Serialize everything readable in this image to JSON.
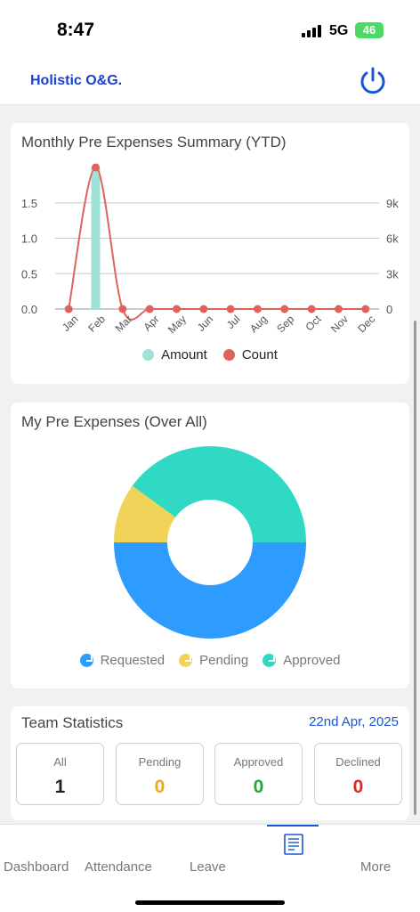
{
  "status_bar": {
    "time": "8:47",
    "network": "5G",
    "battery": "46"
  },
  "app": {
    "brand": "Holistic O&G."
  },
  "monthly_card": {
    "title": "Monthly Pre Expenses Summary (YTD)"
  },
  "overall_card": {
    "title": "My Pre Expenses (Over All)",
    "legend": [
      "Requested",
      "Pending",
      "Approved"
    ]
  },
  "team": {
    "title": "Team Statistics",
    "date": "22nd Apr, 2025",
    "stats": [
      {
        "label": "All",
        "value": "1",
        "color": "#222222"
      },
      {
        "label": "Pending",
        "value": "0",
        "color": "#f0a81a"
      },
      {
        "label": "Approved",
        "value": "0",
        "color": "#22a83a"
      },
      {
        "label": "Declined",
        "value": "0",
        "color": "#d62b2b"
      }
    ]
  },
  "nav": {
    "items": [
      "Dashboard",
      "Attendance",
      "Leave",
      "More"
    ]
  },
  "colors": {
    "amount": "#9fe3d6",
    "count": "#e0625c",
    "requested": "#2e9bff",
    "pending": "#f1d35a",
    "approved": "#2fd9c4",
    "brand": "#1a3fd6"
  },
  "chart_data": [
    {
      "type": "bar",
      "title": "Monthly Pre Expenses Summary (YTD)",
      "categories": [
        "Jan",
        "Feb",
        "Mar",
        "Apr",
        "May",
        "Jun",
        "Jul",
        "Aug",
        "Sep",
        "Oct",
        "Nov",
        "Dec"
      ],
      "series": [
        {
          "name": "Amount",
          "type": "bar",
          "axis": "right",
          "values": [
            0,
            12000,
            0,
            0,
            0,
            0,
            0,
            0,
            0,
            0,
            0,
            0
          ]
        },
        {
          "name": "Count",
          "type": "line",
          "axis": "left",
          "values": [
            0,
            2,
            0,
            0,
            0,
            0,
            0,
            0,
            0,
            0,
            0,
            0
          ]
        }
      ],
      "left_ticks": [
        "0.0",
        "0.5",
        "1.0",
        "1.5"
      ],
      "right_ticks": [
        "0",
        "3k",
        "6k",
        "9k"
      ],
      "left_ylim": [
        0,
        2
      ],
      "right_ylim": [
        0,
        12000
      ],
      "grid": true,
      "legend": "bottom"
    },
    {
      "type": "pie",
      "title": "My Pre Expenses (Over All)",
      "categories": [
        "Requested",
        "Pending",
        "Approved"
      ],
      "values": [
        50,
        10,
        40
      ],
      "donut": true,
      "legend": "bottom"
    }
  ]
}
